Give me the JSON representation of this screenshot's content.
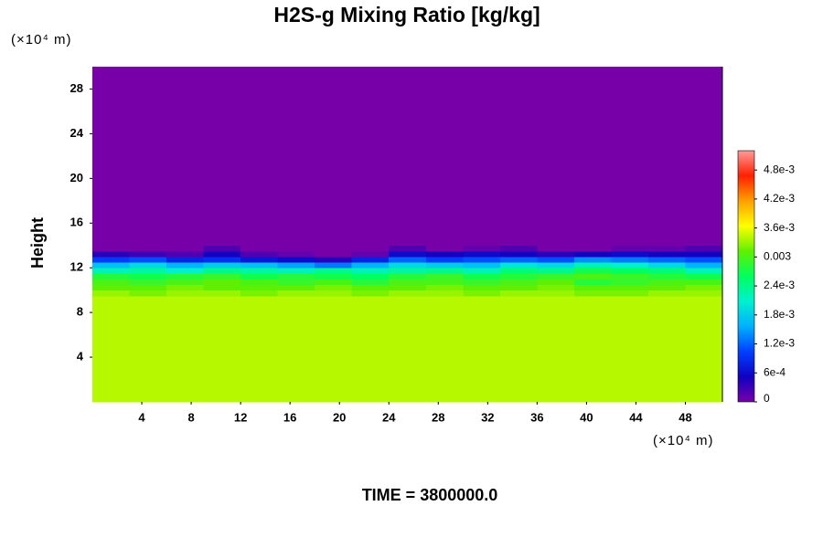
{
  "chart_data": {
    "type": "heatmap",
    "title": "H2S-g Mixing Ratio [kg/kg]",
    "ylabel": "Height",
    "x_unit": "(×10⁴ m)",
    "y_unit": "(×10⁴ m)",
    "footer": "TIME = 3800000.0",
    "xlim": [
      0,
      51
    ],
    "ylim": [
      0,
      30
    ],
    "xticks": [
      4,
      8,
      12,
      16,
      20,
      24,
      28,
      32,
      36,
      40,
      44,
      48
    ],
    "yticks": [
      4,
      8,
      12,
      16,
      20,
      24,
      28
    ],
    "xbins": [
      0,
      3,
      6,
      9,
      12,
      15,
      18,
      21,
      24,
      27,
      30,
      33,
      36,
      39,
      42,
      45,
      48,
      51
    ],
    "ybins": [
      0,
      9.5,
      10,
      10.5,
      11,
      11.5,
      12,
      12.5,
      13,
      13.5,
      14,
      30
    ],
    "z": [
      [
        0.0034,
        0.0034,
        0.0034,
        0.0034,
        0.0034,
        0.0034,
        0.0034,
        0.0034,
        0.0034,
        0.0034,
        0.0034,
        0.0034,
        0.0034,
        0.0034,
        0.0034,
        0.0034,
        0.0034
      ],
      [
        0.0033,
        0.0032,
        0.0033,
        0.0033,
        0.0032,
        0.0033,
        0.0033,
        0.0032,
        0.0033,
        0.0033,
        0.0032,
        0.0033,
        0.0033,
        0.0032,
        0.0032,
        0.0033,
        0.0033
      ],
      [
        0.0031,
        0.0031,
        0.0032,
        0.0031,
        0.0031,
        0.0031,
        0.0032,
        0.0031,
        0.0031,
        0.0032,
        0.0031,
        0.0031,
        0.0032,
        0.0031,
        0.0031,
        0.0031,
        0.0032
      ],
      [
        0.003,
        0.0029,
        0.003,
        0.0031,
        0.003,
        0.0029,
        0.003,
        0.0028,
        0.003,
        0.003,
        0.0029,
        0.003,
        0.0031,
        0.0028,
        0.0029,
        0.003,
        0.003
      ],
      [
        0.0028,
        0.0027,
        0.0028,
        0.0029,
        0.0027,
        0.0028,
        0.0027,
        0.0026,
        0.0028,
        0.0029,
        0.0027,
        0.0028,
        0.0029,
        0.003,
        0.0029,
        0.0028,
        0.0027
      ],
      [
        0.0022,
        0.0023,
        0.0021,
        0.0024,
        0.0023,
        0.0022,
        0.0024,
        0.0022,
        0.0023,
        0.0024,
        0.0022,
        0.0025,
        0.0024,
        0.0027,
        0.0026,
        0.0025,
        0.0022
      ],
      [
        0.0017,
        0.0019,
        0.0016,
        0.0018,
        0.0017,
        0.0015,
        0.0013,
        0.0016,
        0.0019,
        0.0018,
        0.0017,
        0.002,
        0.0019,
        0.0022,
        0.0021,
        0.0019,
        0.0016
      ],
      [
        0.001,
        0.0011,
        0.0008,
        0.0009,
        0.0007,
        0.0006,
        0.0004,
        0.0008,
        0.0012,
        0.001,
        0.0011,
        0.0012,
        0.0011,
        0.0014,
        0.0013,
        0.0012,
        0.0011
      ],
      [
        0.0004,
        0.0003,
        0.0002,
        0.0005,
        0.0002,
        0.0001,
        0,
        0.0001,
        0.0006,
        0.0005,
        0.0006,
        0.0005,
        0.0004,
        0.0005,
        0.0006,
        0.0005,
        0.0005
      ],
      [
        0,
        0,
        0,
        0.0002,
        0,
        0,
        0,
        0,
        0.0002,
        0,
        0.0001,
        0.0002,
        0,
        0,
        0.0001,
        0.0001,
        0.0002
      ],
      [
        0,
        0,
        0,
        0,
        0,
        0,
        0,
        0,
        0,
        0,
        0,
        0,
        0,
        0,
        0,
        0,
        0
      ]
    ],
    "clim": [
      0,
      0.0052
    ],
    "colors": [
      "#7800a8",
      "#1000c0",
      "#0040ff",
      "#00b0ff",
      "#00f0d0",
      "#00ff60",
      "#60f000",
      "#ffff00",
      "#ffa000",
      "#ff2000",
      "#ff9a9a"
    ],
    "cticks": [
      0,
      {
        "value": 0.0006,
        "label": "6e-4"
      },
      {
        "value": 0.0012,
        "label": "1.2e-3"
      },
      {
        "value": 0.0018,
        "label": "1.8e-3"
      },
      {
        "value": 0.0024,
        "label": "2.4e-3"
      },
      0.003,
      {
        "value": 0.0036,
        "label": "3.6e-3"
      },
      {
        "value": 0.0042,
        "label": "4.2e-3"
      },
      {
        "value": 0.0048,
        "label": "4.8e-3"
      }
    ]
  }
}
